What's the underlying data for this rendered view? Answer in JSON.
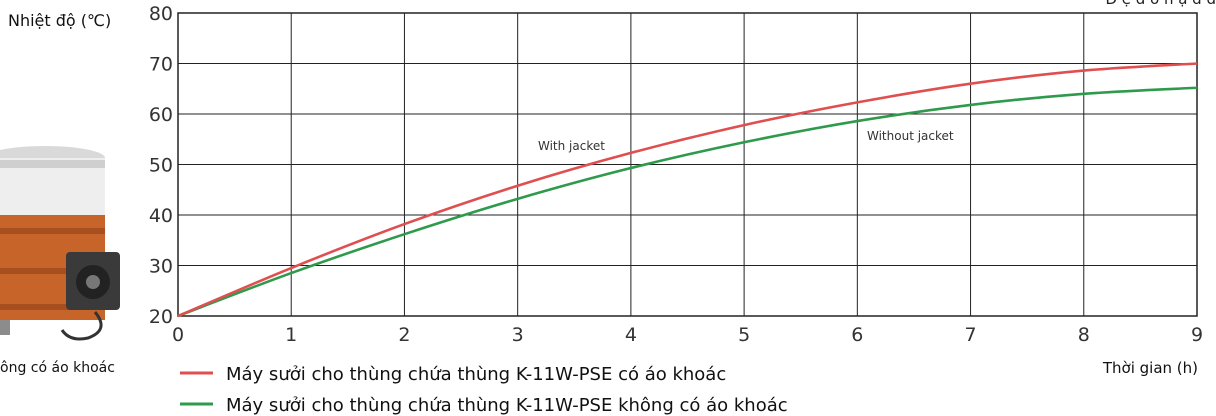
{
  "chart_data": {
    "type": "line",
    "title": "",
    "top_right_note": "Đ  ệ  đ  ờ    h  ặ  đ      đ",
    "ylabel": "Nhiệt độ (℃)",
    "xlabel": "Thời gian (h)",
    "x_ticks": [
      "0",
      "1",
      "2",
      "3",
      "4",
      "5",
      "6",
      "7",
      "8",
      "9"
    ],
    "y_ticks": [
      "20",
      "30",
      "40",
      "50",
      "60",
      "70",
      "80"
    ],
    "xlim": [
      0,
      9
    ],
    "ylim": [
      20,
      80
    ],
    "grid": true,
    "x": [
      0,
      1,
      2,
      3,
      4,
      5,
      6,
      7,
      8,
      9
    ],
    "series": [
      {
        "name": "Máy sưởi cho thùng chứa thùng K-11W-PSE có áo khoác",
        "color": "#e04f4f",
        "annotation": "With jacket",
        "values": [
          20,
          29.5,
          38.2,
          45.8,
          52.3,
          57.8,
          62.3,
          66.0,
          68.6,
          70.0
        ]
      },
      {
        "name": "Máy sưởi cho thùng chứa thùng K-11W-PSE không có áo khoác",
        "color": "#2f9a4c",
        "annotation": "Without jacket",
        "values": [
          20,
          28.5,
          36.2,
          43.2,
          49.3,
          54.4,
          58.6,
          61.8,
          64.0,
          65.2
        ]
      }
    ],
    "image_caption": "ông có áo khoác"
  }
}
